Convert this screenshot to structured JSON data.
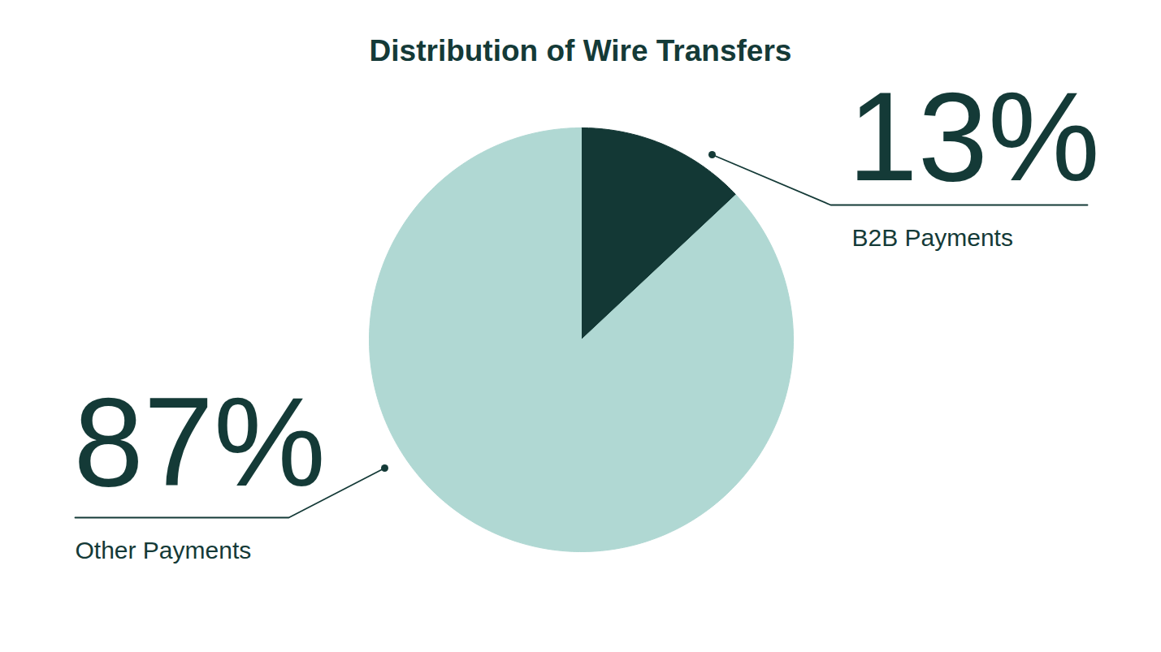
{
  "chart_data": {
    "type": "pie",
    "title": "Distribution of Wire Transfers",
    "categories": [
      "B2B Payments",
      "Other Payments"
    ],
    "values": [
      13,
      87
    ],
    "value_labels": [
      "13%",
      "87%"
    ],
    "colors": [
      "#133835",
      "#b0d8d3"
    ],
    "data_labels": true
  }
}
